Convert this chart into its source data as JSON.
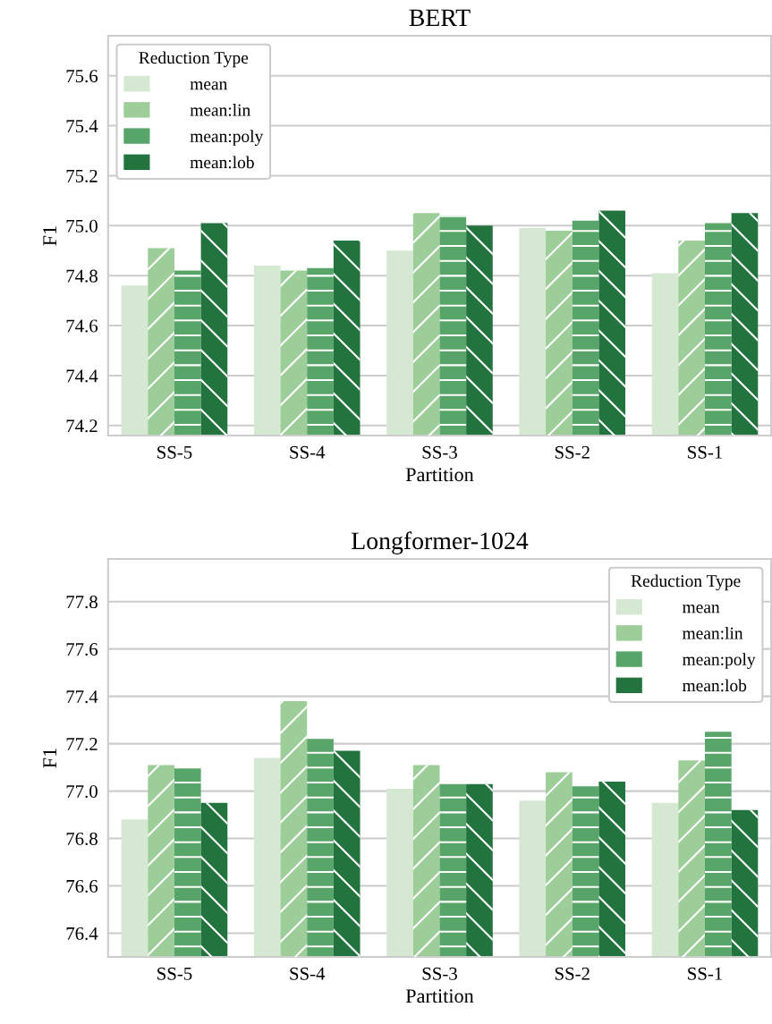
{
  "chart_data": [
    {
      "type": "bar",
      "title": "BERT",
      "xlabel": "Partition",
      "ylabel": "F1",
      "legend_title": "Reduction Type",
      "legend": "top left",
      "grid": "y",
      "categories": [
        "SS-5",
        "SS-4",
        "SS-3",
        "SS-2",
        "SS-1"
      ],
      "ylim": [
        74.16,
        75.76
      ],
      "yticks": [
        {
          "value": 74.2,
          "label": "74.2"
        },
        {
          "value": 74.4,
          "label": "74.4"
        },
        {
          "value": 74.6,
          "label": "74.6"
        },
        {
          "value": 74.8,
          "label": "74.8"
        },
        {
          "value": 75.0,
          "label": "75.0"
        },
        {
          "value": 75.2,
          "label": "75.2"
        },
        {
          "value": 75.4,
          "label": "75.4"
        },
        {
          "value": 75.6,
          "label": "75.6"
        }
      ],
      "series": [
        {
          "name": "mean",
          "color": "#d5e9d2",
          "values": [
            74.76,
            74.84,
            74.9,
            74.99,
            74.81
          ]
        },
        {
          "name": "mean:lin",
          "color": "#9dcd98",
          "values": [
            74.91,
            74.82,
            75.05,
            74.98,
            74.94
          ]
        },
        {
          "name": "mean:poly",
          "color": "#58a56a",
          "values": [
            74.82,
            74.83,
            75.04,
            75.02,
            75.01
          ]
        },
        {
          "name": "mean:lob",
          "color": "#23733f",
          "values": [
            75.01,
            74.94,
            75.0,
            75.06,
            75.05
          ]
        }
      ]
    },
    {
      "type": "bar",
      "title": "Longformer-1024",
      "xlabel": "Partition",
      "ylabel": "F1",
      "legend_title": "Reduction Type",
      "legend": "top right",
      "grid": "y",
      "categories": [
        "SS-5",
        "SS-4",
        "SS-3",
        "SS-2",
        "SS-1"
      ],
      "ylim": [
        76.3,
        77.98
      ],
      "yticks": [
        {
          "value": 76.4,
          "label": "76.4"
        },
        {
          "value": 76.6,
          "label": "76.6"
        },
        {
          "value": 76.8,
          "label": "76.8"
        },
        {
          "value": 77.0,
          "label": "77.0"
        },
        {
          "value": 77.2,
          "label": "77.2"
        },
        {
          "value": 77.4,
          "label": "77.4"
        },
        {
          "value": 77.6,
          "label": "77.6"
        },
        {
          "value": 77.8,
          "label": "77.8"
        }
      ],
      "series": [
        {
          "name": "mean",
          "color": "#d5e9d2",
          "values": [
            76.88,
            77.14,
            77.01,
            76.96,
            76.95
          ]
        },
        {
          "name": "mean:lin",
          "color": "#9dcd98",
          "values": [
            77.11,
            77.38,
            77.11,
            77.08,
            77.13
          ]
        },
        {
          "name": "mean:poly",
          "color": "#58a56a",
          "values": [
            77.1,
            77.22,
            77.03,
            77.02,
            77.25
          ]
        },
        {
          "name": "mean:lob",
          "color": "#23733f",
          "values": [
            76.95,
            77.17,
            77.03,
            77.04,
            76.92
          ]
        }
      ]
    }
  ]
}
